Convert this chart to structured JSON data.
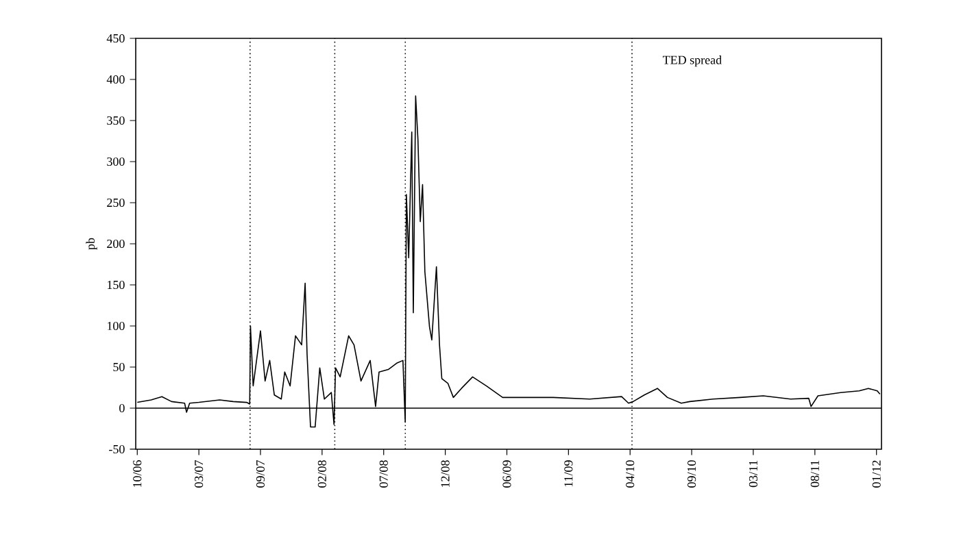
{
  "chart_data": {
    "type": "line",
    "ylabel": "pb",
    "annotations": [
      "TED spread"
    ],
    "xlim": [
      "2006-10-16",
      "2012-02-04"
    ],
    "xticks": [
      {
        "value": "2006-10-20",
        "label": "10/06"
      },
      {
        "value": "2007-03-29",
        "label": "03/07"
      },
      {
        "value": "2007-09-05",
        "label": "09/07"
      },
      {
        "value": "2008-02-12",
        "label": "02/08"
      },
      {
        "value": "2008-07-21",
        "label": "07/08"
      },
      {
        "value": "2008-12-28",
        "label": "12/08"
      },
      {
        "value": "2009-06-06",
        "label": "06/09"
      },
      {
        "value": "2009-11-13",
        "label": "11/09"
      },
      {
        "value": "2010-04-22",
        "label": "04/10"
      },
      {
        "value": "2010-09-29",
        "label": "09/10"
      },
      {
        "value": "2011-03-08",
        "label": "03/11"
      },
      {
        "value": "2011-08-15",
        "label": "08/11"
      },
      {
        "value": "2012-01-22",
        "label": "01/12"
      }
    ],
    "ylim": [
      -50,
      450
    ],
    "yticks": [
      -50,
      0,
      50,
      100,
      150,
      200,
      250,
      300,
      350,
      400,
      450
    ],
    "grid": false,
    "marker": "none",
    "line_style": "solid",
    "ref_lines": [
      {
        "axis": "y",
        "value": 0,
        "line_style": "solid",
        "color": "#000000"
      },
      {
        "axis": "x",
        "value": "2007-08-09",
        "line_style": "dotted",
        "color": "#000000"
      },
      {
        "axis": "x",
        "value": "2008-03-16",
        "line_style": "dotted",
        "color": "#000000"
      },
      {
        "axis": "x",
        "value": "2008-09-15",
        "line_style": "dotted",
        "color": "#000000"
      },
      {
        "axis": "x",
        "value": "2010-04-27",
        "line_style": "dotted",
        "color": "#000000"
      }
    ],
    "series": [
      {
        "color": "#000000",
        "x": [
          "2006-10-20",
          "2006-11-25",
          "2006-12-23",
          "2007-01-17",
          "2007-02-20",
          "2007-02-25",
          "2007-03-05",
          "2007-03-29",
          "2007-05-22",
          "2007-06-26",
          "2007-07-31",
          "2007-08-08",
          "2007-08-10",
          "2007-08-17",
          "2007-09-05",
          "2007-09-17",
          "2007-09-29",
          "2007-10-11",
          "2007-10-29",
          "2007-11-07",
          "2007-11-21",
          "2007-12-05",
          "2007-12-21",
          "2007-12-30",
          "2008-01-04",
          "2008-01-13",
          "2008-01-25",
          "2008-02-06",
          "2008-02-18",
          "2008-03-07",
          "2008-03-14",
          "2008-03-18",
          "2008-03-30",
          "2008-04-21",
          "2008-05-05",
          "2008-05-23",
          "2008-06-16",
          "2008-06-30",
          "2008-07-09",
          "2008-08-02",
          "2008-08-25",
          "2008-09-09",
          "2008-09-15",
          "2008-09-18",
          "2008-09-24",
          "2008-10-02",
          "2008-10-06",
          "2008-10-12",
          "2008-10-18",
          "2008-10-24",
          "2008-10-30",
          "2008-11-05",
          "2008-11-17",
          "2008-11-23",
          "2008-12-05",
          "2008-12-13",
          "2008-12-19",
          "2009-01-04",
          "2009-01-18",
          "2009-02-08",
          "2009-03-09",
          "2009-04-14",
          "2009-05-26",
          "2009-07-12",
          "2009-10-04",
          "2010-01-07",
          "2010-03-31",
          "2010-04-18",
          "2010-04-30",
          "2010-05-29",
          "2010-07-02",
          "2010-07-28",
          "2010-09-02",
          "2010-09-24",
          "2010-11-23",
          "2011-02-02",
          "2011-04-03",
          "2011-06-13",
          "2011-07-30",
          "2011-08-05",
          "2011-08-23",
          "2011-10-21",
          "2011-12-08",
          "2012-01-01",
          "2012-01-24",
          "2012-01-31"
        ],
        "values": [
          7,
          10,
          14,
          8,
          6,
          -5,
          6,
          7,
          10,
          8,
          7,
          5,
          100,
          27,
          94,
          33,
          58,
          16,
          11,
          44,
          27,
          88,
          77,
          152,
          66,
          -23,
          -23,
          49,
          11,
          19,
          -20,
          49,
          38,
          88,
          77,
          33,
          58,
          2,
          44,
          47,
          55,
          58,
          -17,
          260,
          183,
          336,
          116,
          380,
          327,
          227,
          272,
          166,
          99,
          83,
          172,
          77,
          36,
          30,
          13,
          24,
          38,
          27,
          13,
          13,
          13,
          11,
          14,
          6,
          8,
          16,
          24,
          13,
          6,
          8,
          11,
          13,
          15,
          11,
          12,
          2,
          15,
          19,
          21,
          24,
          21,
          17
        ]
      }
    ]
  }
}
